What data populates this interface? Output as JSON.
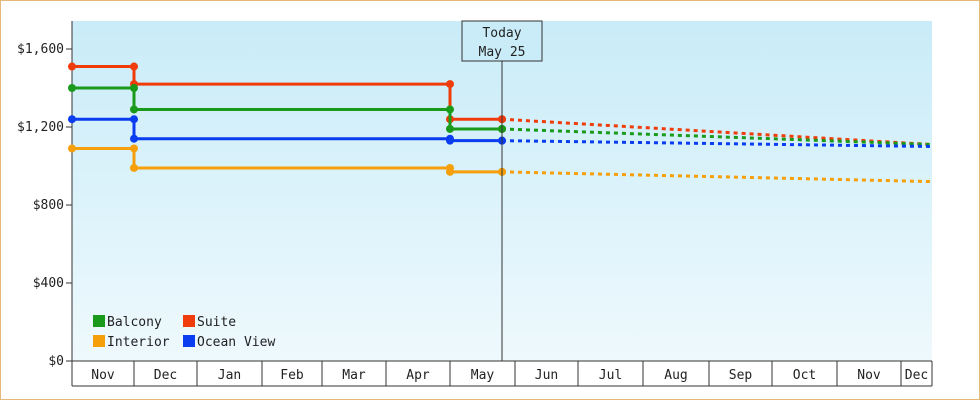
{
  "chart_data": {
    "type": "line",
    "x_months": [
      "Nov",
      "Dec",
      "Jan",
      "Feb",
      "Mar",
      "Apr",
      "May",
      "Jun",
      "Jul",
      "Aug",
      "Sep",
      "Oct",
      "Nov",
      "Dec"
    ],
    "y_ticks": [
      "$0",
      "$400",
      "$800",
      "$1,200",
      "$1,600"
    ],
    "ylim": [
      0,
      1600
    ],
    "today": {
      "label_line1": "Today",
      "label_line2": "May 25"
    },
    "legend": [
      {
        "name": "Balcony",
        "color": "#1a9a1a"
      },
      {
        "name": "Suite",
        "color": "#f03c0a"
      },
      {
        "name": "Interior",
        "color": "#f5a00a"
      },
      {
        "name": "Ocean View",
        "color": "#0a3cf0"
      }
    ],
    "series": [
      {
        "name": "Suite",
        "color": "#f03c0a",
        "steps": [
          {
            "x": "Nov 1",
            "y": 1510
          },
          {
            "x": "Dec 1",
            "y": 1420
          },
          {
            "x": "May 1",
            "y": 1240
          },
          {
            "x": "May 25",
            "y": 1240
          }
        ],
        "forecast": [
          {
            "x": "May 25",
            "y": 1240
          },
          {
            "x": "Dec 31",
            "y": 1110
          }
        ]
      },
      {
        "name": "Balcony",
        "color": "#1a9a1a",
        "steps": [
          {
            "x": "Nov 1",
            "y": 1400
          },
          {
            "x": "Dec 1",
            "y": 1290
          },
          {
            "x": "May 1",
            "y": 1190
          },
          {
            "x": "May 25",
            "y": 1190
          }
        ],
        "forecast": [
          {
            "x": "May 25",
            "y": 1190
          },
          {
            "x": "Dec 31",
            "y": 1110
          }
        ]
      },
      {
        "name": "Ocean View",
        "color": "#0a3cf0",
        "steps": [
          {
            "x": "Nov 1",
            "y": 1240
          },
          {
            "x": "Dec 1",
            "y": 1140
          },
          {
            "x": "May 1",
            "y": 1130
          },
          {
            "x": "May 25",
            "y": 1130
          }
        ],
        "forecast": [
          {
            "x": "May 25",
            "y": 1130
          },
          {
            "x": "Dec 31",
            "y": 1100
          }
        ]
      },
      {
        "name": "Interior",
        "color": "#f5a00a",
        "steps": [
          {
            "x": "Nov 1",
            "y": 1090
          },
          {
            "x": "Dec 1",
            "y": 990
          },
          {
            "x": "May 1",
            "y": 970
          },
          {
            "x": "May 25",
            "y": 970
          }
        ],
        "forecast": [
          {
            "x": "May 25",
            "y": 970
          },
          {
            "x": "Dec 31",
            "y": 920
          }
        ]
      }
    ]
  }
}
